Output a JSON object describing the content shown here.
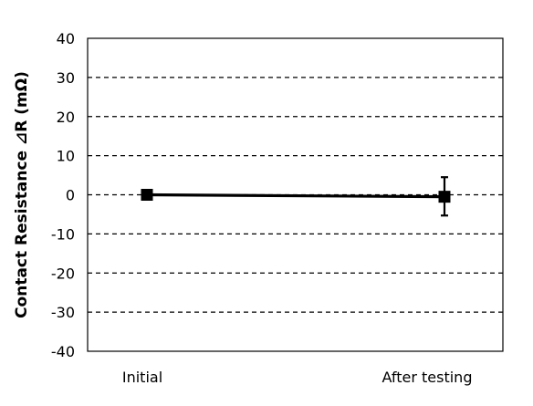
{
  "chart_data": {
    "type": "line",
    "title": "",
    "xlabel": "",
    "ylabel": "Contact Resistance ⊿R (mΩ)",
    "categories": [
      "Initial",
      "After testing"
    ],
    "series": [
      {
        "values": [
          0,
          -0.5
        ],
        "error_low": [
          0,
          4.8
        ],
        "error_high": [
          0,
          5.0
        ],
        "marker": "square",
        "color": "#000000"
      }
    ],
    "ylim": [
      -40,
      40
    ],
    "yticks": [
      40,
      30,
      20,
      10,
      0,
      -10,
      -20,
      -30,
      -40
    ],
    "grid": "dashed horizontal",
    "legend": "none"
  }
}
